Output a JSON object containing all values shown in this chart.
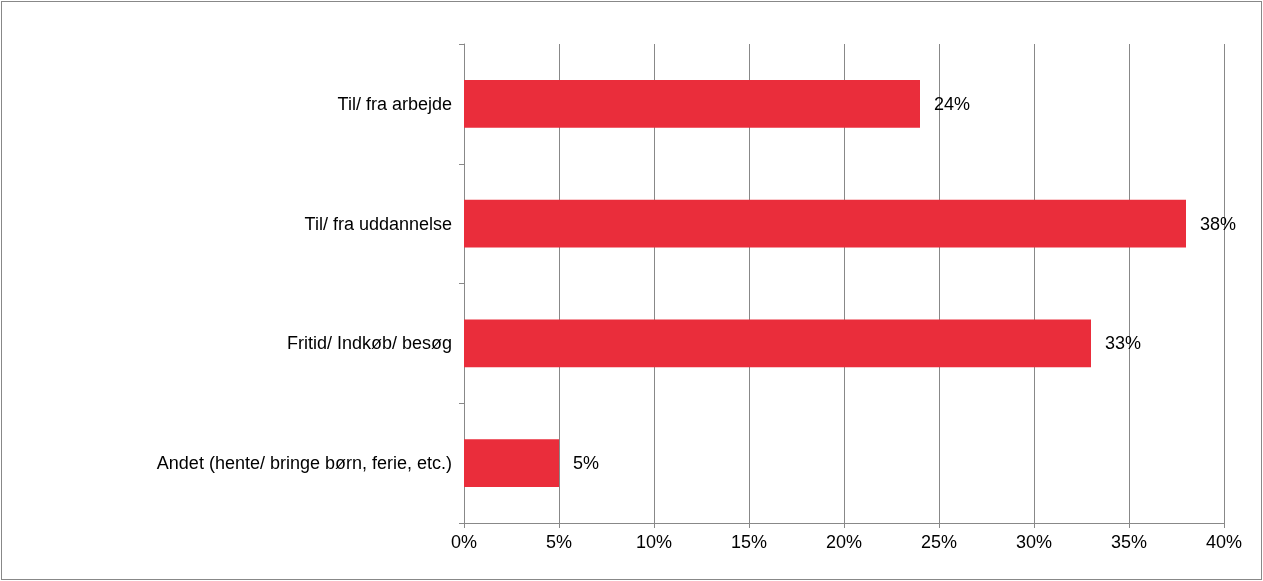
{
  "chart_data": {
    "type": "bar",
    "orientation": "horizontal",
    "categories": [
      "Til/ fra arbejde",
      "Til/ fra uddannelse",
      "Fritid/ Indkøb/ besøg",
      "Andet (hente/ bringe børn, ferie, etc.)"
    ],
    "values": [
      24,
      38,
      33,
      5
    ],
    "value_labels": [
      "24%",
      "38%",
      "33%",
      "5%"
    ],
    "color": "#ea2d3b",
    "xlim": [
      0,
      40
    ],
    "xticks": [
      {
        "value": 0,
        "label": "0%"
      },
      {
        "value": 5,
        "label": "5%"
      },
      {
        "value": 10,
        "label": "10%"
      },
      {
        "value": 15,
        "label": "15%"
      },
      {
        "value": 20,
        "label": "20%"
      },
      {
        "value": 25,
        "label": "25%"
      },
      {
        "value": 30,
        "label": "30%"
      },
      {
        "value": 35,
        "label": "35%"
      },
      {
        "value": 40,
        "label": "40%"
      }
    ],
    "grid": "x"
  }
}
